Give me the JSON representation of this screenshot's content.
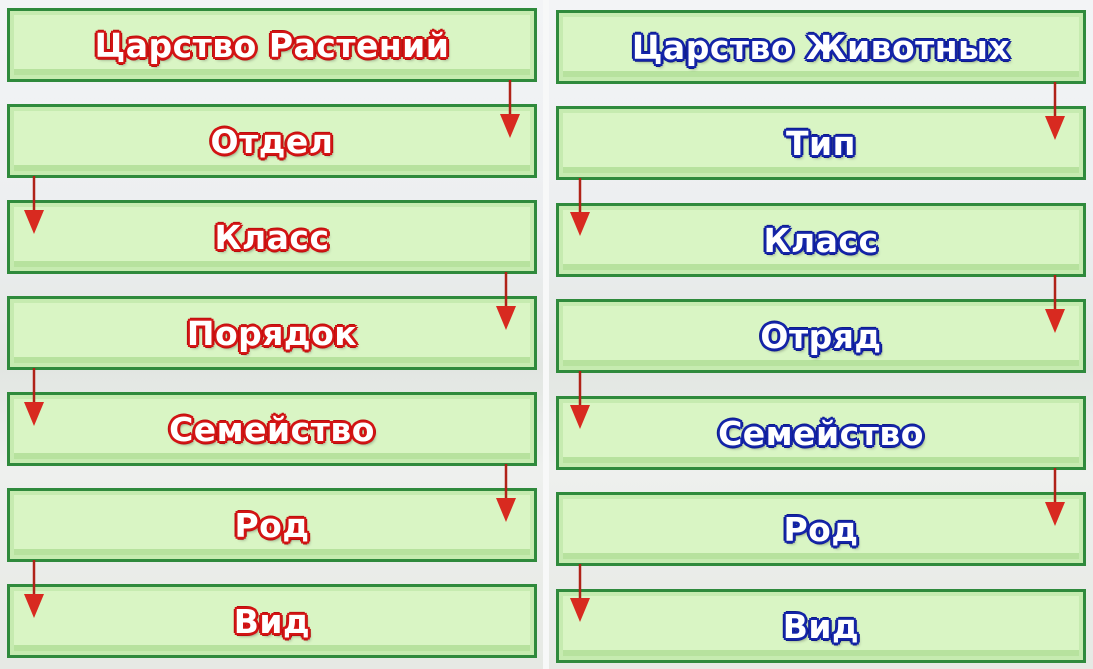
{
  "plants": {
    "title": "Царство Растений",
    "levels": [
      "Отдел",
      "Класс",
      "Порядок",
      "Семейство",
      "Род",
      "Вид"
    ],
    "text_color": "#d31414"
  },
  "animals": {
    "title": "Царство Животных",
    "levels": [
      "Тип",
      "Класс",
      "Отряд",
      "Семейство",
      "Род",
      "Вид"
    ],
    "text_color": "#1424a8"
  },
  "box_fill": "#d9f5c4",
  "box_border": "#2f8a3c",
  "arrow_color": "#d82a20"
}
